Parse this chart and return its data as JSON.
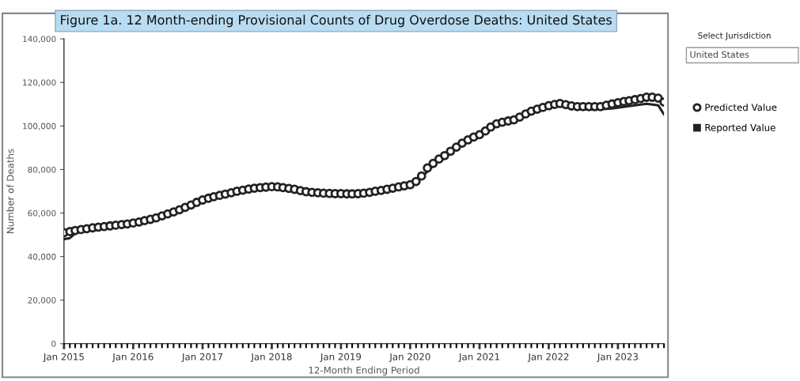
{
  "chart_data": {
    "type": "line",
    "title": "Figure 1a. 12 Month-ending Provisional Counts of Drug Overdose Deaths: United States",
    "xlabel": "12-Month Ending Period",
    "ylabel": "Number of Deaths",
    "x": [
      "2015-01",
      "2015-02",
      "2015-03",
      "2015-04",
      "2015-05",
      "2015-06",
      "2015-07",
      "2015-08",
      "2015-09",
      "2015-10",
      "2015-11",
      "2015-12",
      "2016-01",
      "2016-02",
      "2016-03",
      "2016-04",
      "2016-05",
      "2016-06",
      "2016-07",
      "2016-08",
      "2016-09",
      "2016-10",
      "2016-11",
      "2016-12",
      "2017-01",
      "2017-02",
      "2017-03",
      "2017-04",
      "2017-05",
      "2017-06",
      "2017-07",
      "2017-08",
      "2017-09",
      "2017-10",
      "2017-11",
      "2017-12",
      "2018-01",
      "2018-02",
      "2018-03",
      "2018-04",
      "2018-05",
      "2018-06",
      "2018-07",
      "2018-08",
      "2018-09",
      "2018-10",
      "2018-11",
      "2018-12",
      "2019-01",
      "2019-02",
      "2019-03",
      "2019-04",
      "2019-05",
      "2019-06",
      "2019-07",
      "2019-08",
      "2019-09",
      "2019-10",
      "2019-11",
      "2019-12",
      "2020-01",
      "2020-02",
      "2020-03",
      "2020-04",
      "2020-05",
      "2020-06",
      "2020-07",
      "2020-08",
      "2020-09",
      "2020-10",
      "2020-11",
      "2020-12",
      "2021-01",
      "2021-02",
      "2021-03",
      "2021-04",
      "2021-05",
      "2021-06",
      "2021-07",
      "2021-08",
      "2021-09",
      "2021-10",
      "2021-11",
      "2021-12",
      "2022-01",
      "2022-02",
      "2022-03",
      "2022-04",
      "2022-05",
      "2022-06",
      "2022-07",
      "2022-08",
      "2022-09",
      "2022-10",
      "2022-11",
      "2022-12",
      "2023-01",
      "2023-02",
      "2023-03",
      "2023-04",
      "2023-05",
      "2023-06",
      "2023-07",
      "2023-08",
      "2023-09"
    ],
    "series": [
      {
        "name": "Predicted Value",
        "type": "scatter",
        "marker": "circle",
        "color": "#222222",
        "values": [
          51000,
          51500,
          52000,
          52400,
          52800,
          53200,
          53500,
          53800,
          54100,
          54400,
          54700,
          55000,
          55400,
          55900,
          56500,
          57100,
          57800,
          58700,
          59600,
          60500,
          61500,
          62600,
          63700,
          64900,
          66000,
          66800,
          67500,
          68100,
          68700,
          69300,
          70000,
          70500,
          71000,
          71400,
          71700,
          71900,
          72100,
          72000,
          71700,
          71300,
          70900,
          70300,
          69800,
          69500,
          69300,
          69100,
          69000,
          68900,
          68900,
          68800,
          68800,
          68900,
          69100,
          69500,
          70000,
          70400,
          70900,
          71400,
          72000,
          72500,
          73000,
          74500,
          77000,
          80700,
          82800,
          84800,
          86400,
          88400,
          90300,
          92100,
          93600,
          94900,
          96000,
          97700,
          99500,
          101000,
          101700,
          102300,
          102800,
          104100,
          105500,
          106800,
          107700,
          108500,
          109300,
          109900,
          110300,
          109800,
          109200,
          108900,
          108900,
          108900,
          108900,
          108900,
          109500,
          110100,
          110700,
          111200,
          111600,
          112100,
          112600,
          113200,
          113200,
          112800,
          111000
        ]
      },
      {
        "name": "Reported Value",
        "type": "line",
        "color": "#222222",
        "x": [
          "2015-01",
          "2015-02",
          "2015-03",
          "2015-06",
          "2015-09",
          "2015-12",
          "2016-03",
          "2016-06",
          "2016-09",
          "2016-12",
          "2017-03",
          "2017-06",
          "2017-09",
          "2017-12",
          "2018-03",
          "2018-06",
          "2018-09",
          "2018-12",
          "2019-03",
          "2019-06",
          "2019-09",
          "2019-12",
          "2020-03",
          "2020-06",
          "2020-09",
          "2020-12",
          "2021-03",
          "2021-06",
          "2021-09",
          "2021-12",
          "2022-03",
          "2022-06",
          "2022-09",
          "2022-12",
          "2023-03",
          "2023-06",
          "2023-08",
          "2023-09"
        ],
        "values": [
          48000,
          48500,
          50600,
          52900,
          53800,
          54700,
          56200,
          58400,
          61200,
          64600,
          67300,
          69000,
          70800,
          71600,
          71400,
          70000,
          69100,
          68700,
          68600,
          69200,
          70600,
          72200,
          76500,
          84300,
          89800,
          94300,
          98800,
          101600,
          104700,
          107900,
          109200,
          107700,
          107500,
          108000,
          109100,
          110200,
          109500,
          105300
        ]
      }
    ],
    "xlim": [
      "2015-01",
      "2023-09"
    ],
    "xticks": [
      {
        "value": "2015-01",
        "label": "Jan 2015"
      },
      {
        "value": "2016-01",
        "label": "Jan 2016"
      },
      {
        "value": "2017-01",
        "label": "Jan 2017"
      },
      {
        "value": "2018-01",
        "label": "Jan 2018"
      },
      {
        "value": "2019-01",
        "label": "Jan 2019"
      },
      {
        "value": "2020-01",
        "label": "Jan 2020"
      },
      {
        "value": "2021-01",
        "label": "Jan 2021"
      },
      {
        "value": "2022-01",
        "label": "Jan 2022"
      },
      {
        "value": "2023-01",
        "label": "Jan 2023"
      }
    ],
    "ylim": [
      0,
      140000
    ],
    "yticks": [
      {
        "value": 0,
        "label": "0"
      },
      {
        "value": 20000,
        "label": "20,000"
      },
      {
        "value": 40000,
        "label": "40,000"
      },
      {
        "value": 60000,
        "label": "60,000"
      },
      {
        "value": 80000,
        "label": "80,000"
      },
      {
        "value": 100000,
        "label": "100,000"
      },
      {
        "value": 120000,
        "label": "120,000"
      },
      {
        "value": 140000,
        "label": "140,000"
      }
    ],
    "legend": "right",
    "grid": false,
    "line_style": "solid",
    "annotations": [
      "Select Jurisdiction",
      "United States"
    ]
  }
}
